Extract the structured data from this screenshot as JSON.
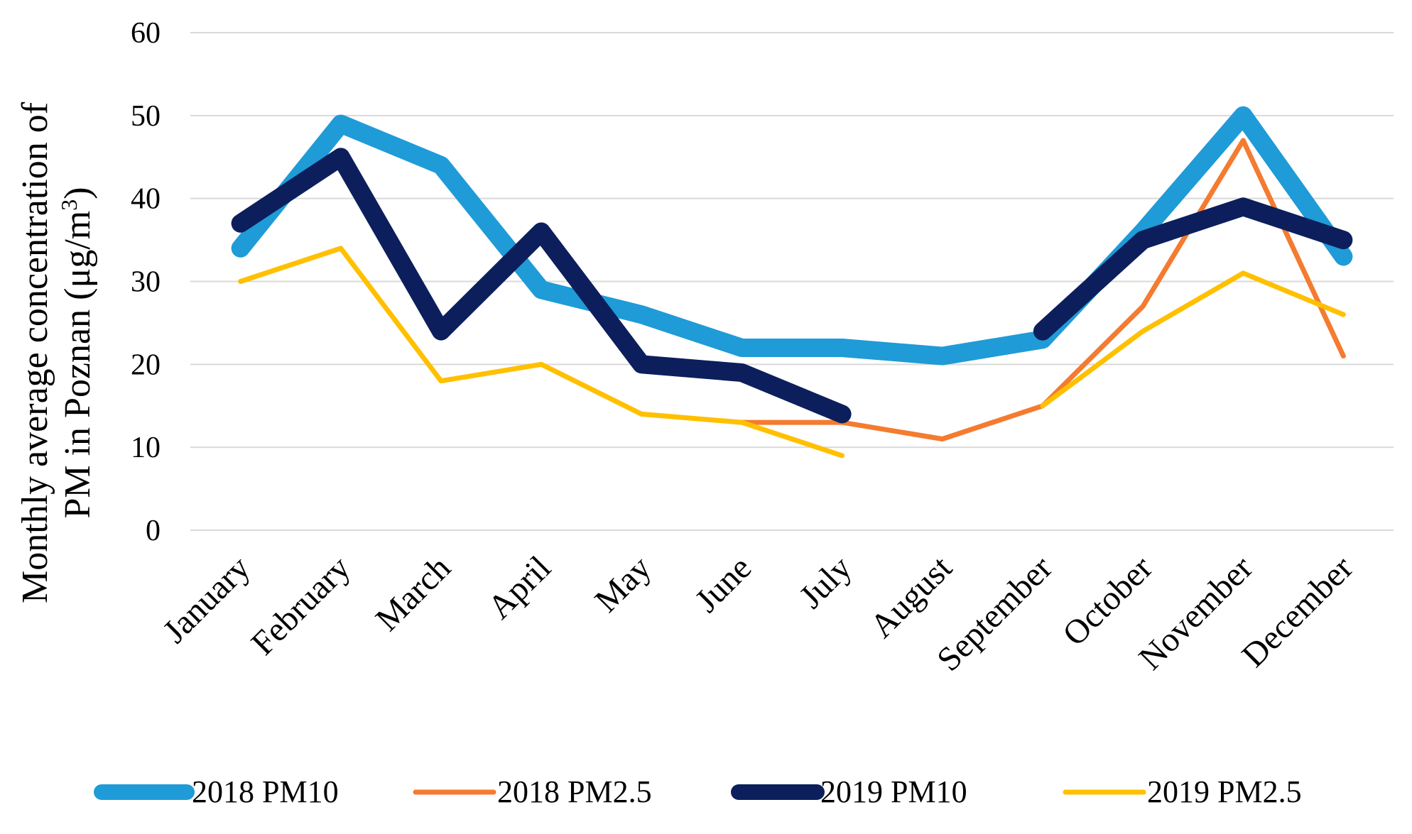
{
  "chart_data": {
    "type": "line",
    "title": "",
    "xlabel": "",
    "ylabel_line1": "Monthly average concentration of",
    "ylabel_line2_prefix": "PM in Poznan (μg/m",
    "ylabel_line2_sup": "3",
    "ylabel_line2_suffix": ")",
    "ylim": [
      0,
      60
    ],
    "yticks": [
      0,
      10,
      20,
      30,
      40,
      50,
      60
    ],
    "grid": true,
    "legend_position": "bottom",
    "categories": [
      "January",
      "February",
      "March",
      "April",
      "May",
      "June",
      "July",
      "August",
      "September",
      "October",
      "November",
      "December"
    ],
    "series": [
      {
        "name": "2018 PM10",
        "color": "#1f9bd7",
        "values": [
          34,
          49,
          44,
          29,
          26,
          22,
          22,
          21,
          23,
          36,
          50,
          33
        ]
      },
      {
        "name": "2018 PM2.5",
        "color": "#f47b30",
        "values": [
          null,
          null,
          null,
          null,
          null,
          13,
          13,
          11,
          15,
          27,
          47,
          21
        ]
      },
      {
        "name": "2019 PM10",
        "color": "#0c1f5c",
        "values": [
          37,
          45,
          24,
          36,
          20,
          19,
          14,
          null,
          24,
          35,
          39,
          35
        ]
      },
      {
        "name": "2019 PM2.5",
        "color": "#ffc000",
        "values": [
          30,
          34,
          18,
          20,
          14,
          13,
          9,
          null,
          null,
          null,
          null,
          null
        ]
      }
    ],
    "series_extra": {
      "2019 PM2.5": {
        "from_september": [
          15,
          24,
          31,
          26
        ]
      }
    }
  }
}
